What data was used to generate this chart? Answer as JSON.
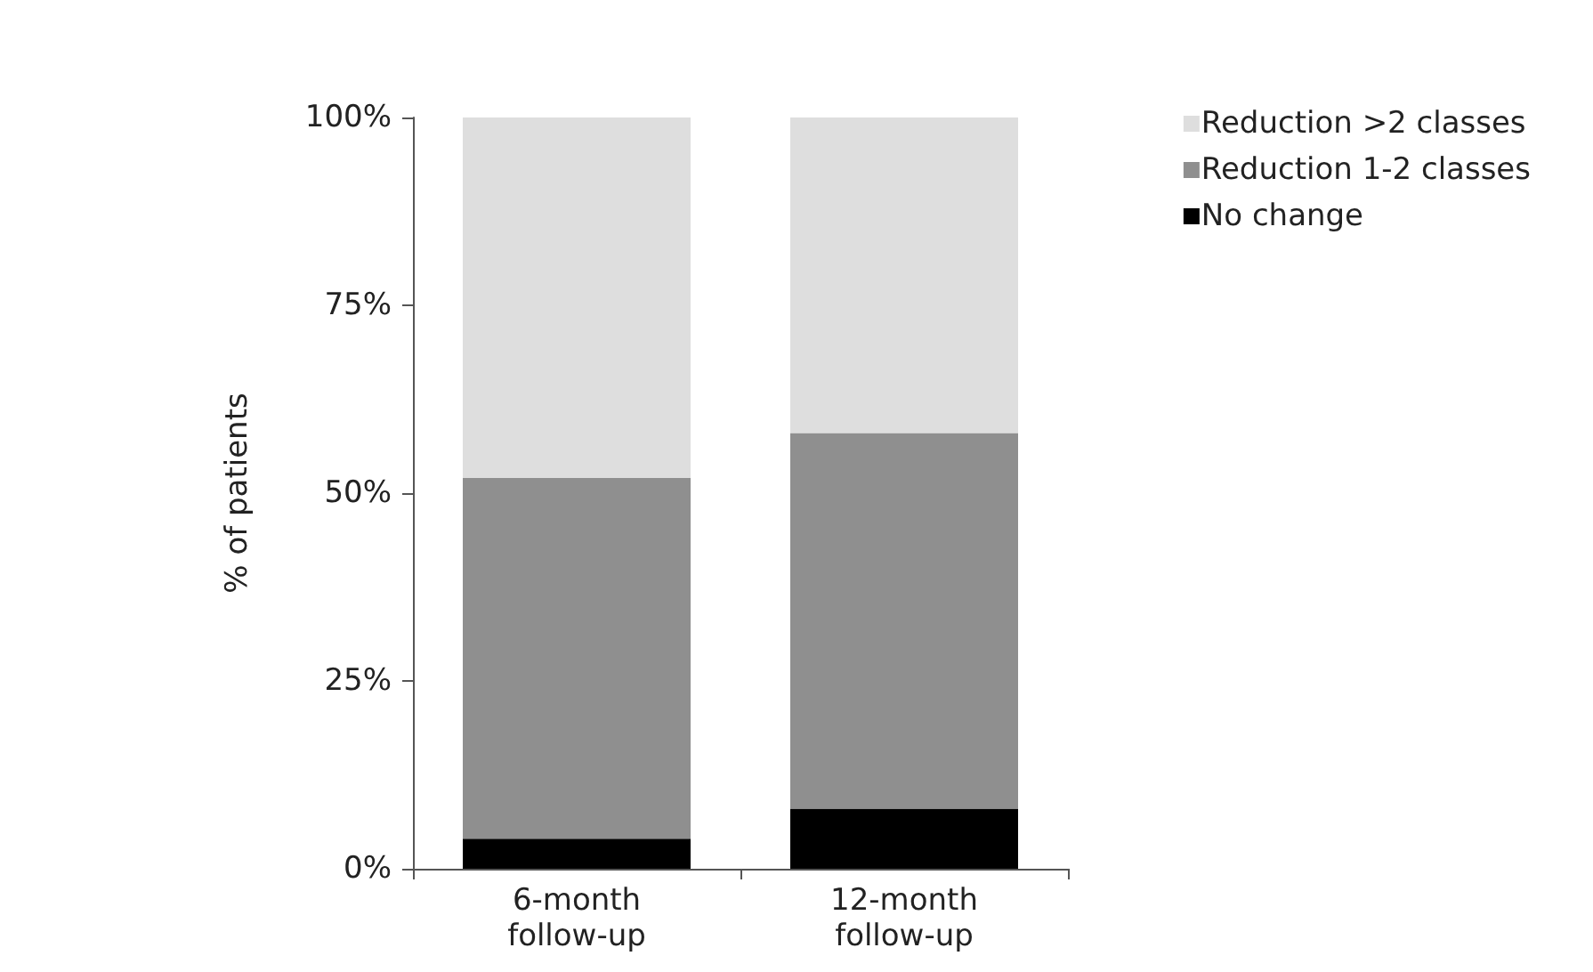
{
  "chart_data": {
    "type": "bar",
    "stacked": true,
    "ylabel": "% of patients",
    "categories": [
      "6-month\nfollow-up",
      "12-month\nfollow-up"
    ],
    "series": [
      {
        "name": "No change",
        "color": "#000000",
        "values": [
          4,
          8
        ]
      },
      {
        "name": "Reduction 1-2 classes",
        "color": "#8f8f8f",
        "values": [
          48,
          50
        ]
      },
      {
        "name": "Reduction >2 classes",
        "color": "#dedede",
        "values": [
          48,
          42
        ]
      }
    ],
    "ylim": [
      0,
      100
    ],
    "yticks": [
      {
        "value": 0,
        "label": "0%"
      },
      {
        "value": 25,
        "label": "25%"
      },
      {
        "value": 50,
        "label": "50%"
      },
      {
        "value": 75,
        "label": "75%"
      },
      {
        "value": 100,
        "label": "100%"
      }
    ],
    "grid": false,
    "legend": "top right"
  }
}
